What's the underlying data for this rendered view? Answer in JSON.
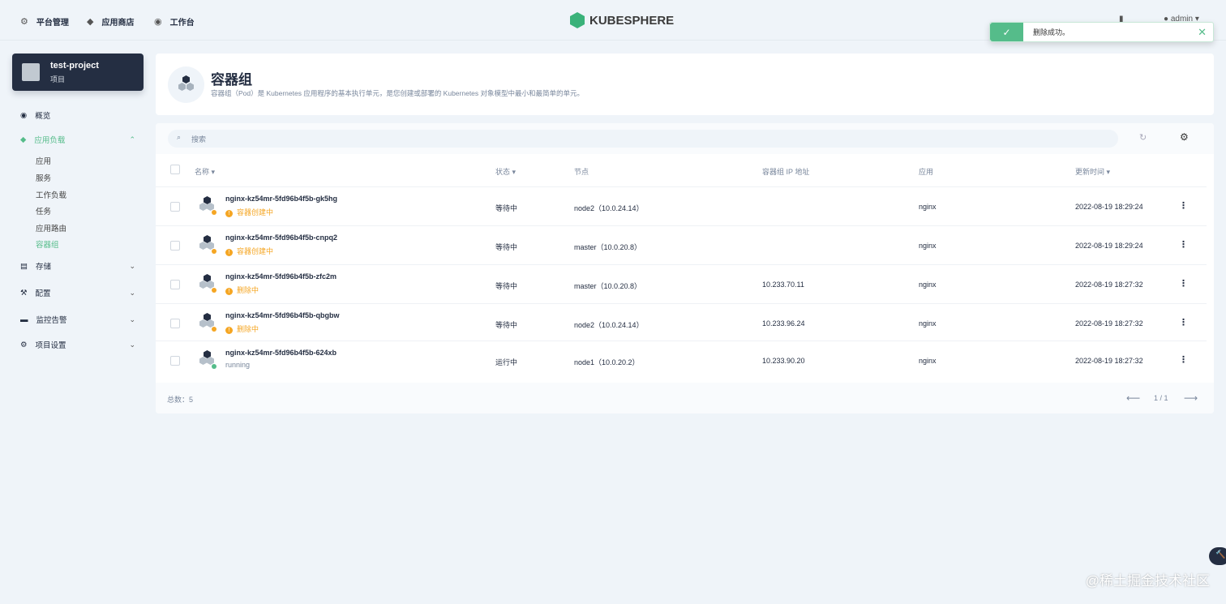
{
  "nav": {
    "items": [
      {
        "icon": "gear-icon",
        "label": "平台管理"
      },
      {
        "icon": "appstore-icon",
        "label": "应用商店"
      },
      {
        "icon": "workbench-icon",
        "label": "工作台"
      }
    ],
    "logo": "KUBESPHERE",
    "user": "admin"
  },
  "toast": {
    "message": "删除成功。"
  },
  "project": {
    "name": "test-project",
    "type": "项目"
  },
  "sidebar": {
    "overview": "概览",
    "workloads": "应用负载",
    "sub": [
      "应用",
      "服务",
      "工作负载",
      "任务",
      "应用路由",
      "容器组"
    ],
    "storage": "存储",
    "config": "配置",
    "monitoring": "监控告警",
    "settings": "项目设置"
  },
  "banner": {
    "title": "容器组",
    "description": "容器组（Pod）是 Kubernetes 应用程序的基本执行单元，是您创建或部署的 Kubernetes 对象模型中最小和最简单的单元。"
  },
  "table": {
    "search_placeholder": "搜索",
    "columns": {
      "name": "名称",
      "status": "状态",
      "node": "节点",
      "ip": "容器组 IP 地址",
      "app": "应用",
      "updated": "更新时间"
    },
    "rows": [
      {
        "name": "nginx-kz54mr-5fd96b4f5b-gk5hg",
        "sub": "容器创建中",
        "state": "warning",
        "status": "等待中",
        "node": "node2（10.0.24.14）",
        "ip": "",
        "app": "nginx",
        "updated": "2022-08-19 18:29:24"
      },
      {
        "name": "nginx-kz54mr-5fd96b4f5b-cnpq2",
        "sub": "容器创建中",
        "state": "warning",
        "status": "等待中",
        "node": "master（10.0.20.8）",
        "ip": "",
        "app": "nginx",
        "updated": "2022-08-19 18:29:24"
      },
      {
        "name": "nginx-kz54mr-5fd96b4f5b-zfc2m",
        "sub": "删除中",
        "state": "warning",
        "status": "等待中",
        "node": "master（10.0.20.8）",
        "ip": "10.233.70.11",
        "app": "nginx",
        "updated": "2022-08-19 18:27:32"
      },
      {
        "name": "nginx-kz54mr-5fd96b4f5b-qbgbw",
        "sub": "删除中",
        "state": "warning",
        "status": "等待中",
        "node": "node2（10.0.24.14）",
        "ip": "10.233.96.24",
        "app": "nginx",
        "updated": "2022-08-19 18:27:32"
      },
      {
        "name": "nginx-kz54mr-5fd96b4f5b-624xb",
        "sub": "running",
        "state": "running",
        "status": "运行中",
        "node": "node1（10.0.20.2）",
        "ip": "10.233.90.20",
        "app": "nginx",
        "updated": "2022-08-19 18:27:32"
      }
    ],
    "total": "总数：5",
    "page": "1 / 1"
  },
  "colors": {
    "accent": "#55bc8a",
    "warning": "#f5a623",
    "dark": "#242e42"
  },
  "watermark": "@稀土掘金技术社区"
}
